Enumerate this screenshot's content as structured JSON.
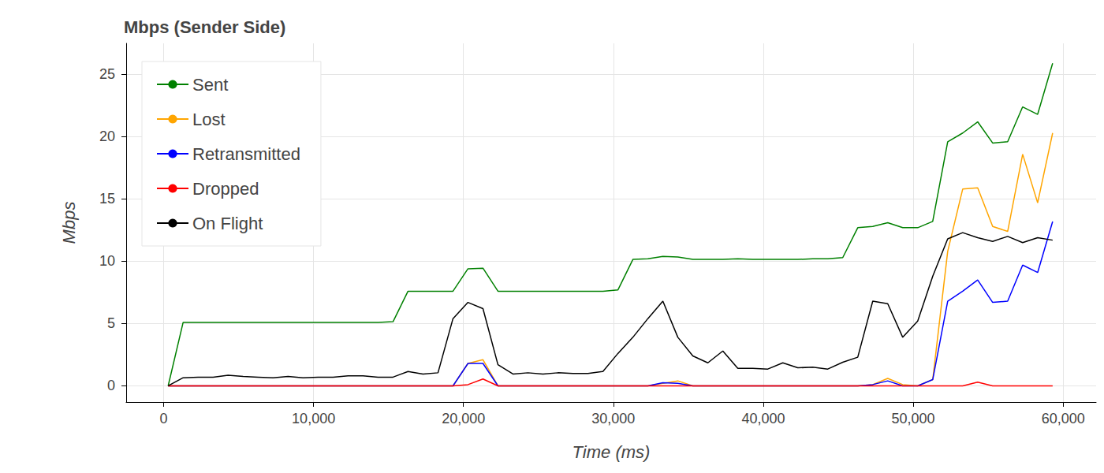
{
  "chart_data": {
    "type": "line",
    "title": "Mbps (Sender Side)",
    "x_label": "Time (ms)",
    "y_label": "Mbps",
    "x": [
      300,
      1300,
      2300,
      3300,
      4300,
      5300,
      6300,
      7300,
      8300,
      9300,
      10300,
      11300,
      12300,
      13300,
      14300,
      15300,
      16300,
      17300,
      18300,
      19300,
      20300,
      21300,
      22300,
      23300,
      24300,
      25300,
      26300,
      27300,
      28300,
      29300,
      30300,
      31300,
      32300,
      33300,
      34300,
      35300,
      36300,
      37300,
      38300,
      39300,
      40300,
      41300,
      42300,
      43300,
      44300,
      45300,
      46300,
      47300,
      48300,
      49300,
      50300,
      51300,
      52300,
      53300,
      54300,
      55300,
      56300,
      57300,
      58300,
      59300
    ],
    "series": [
      {
        "name": "Sent",
        "color": "#008000",
        "values": [
          0,
          5.1,
          5.1,
          5.1,
          5.1,
          5.1,
          5.1,
          5.1,
          5.1,
          5.1,
          5.1,
          5.1,
          5.1,
          5.1,
          5.1,
          5.15,
          7.6,
          7.6,
          7.6,
          7.6,
          9.4,
          9.45,
          7.6,
          7.6,
          7.6,
          7.6,
          7.6,
          7.6,
          7.6,
          7.6,
          7.7,
          10.15,
          10.2,
          10.4,
          10.35,
          10.15,
          10.15,
          10.15,
          10.2,
          10.15,
          10.15,
          10.15,
          10.15,
          10.2,
          10.2,
          10.3,
          12.7,
          12.8,
          13.1,
          12.7,
          12.7,
          13.2,
          19.6,
          20.3,
          21.2,
          19.5,
          19.6,
          22.4,
          21.8,
          25.9
        ]
      },
      {
        "name": "Lost",
        "color": "#ffa500",
        "values": [
          0,
          0,
          0,
          0,
          0,
          0,
          0,
          0,
          0,
          0,
          0,
          0,
          0,
          0,
          0,
          0,
          0,
          0,
          0,
          0,
          1.8,
          2.1,
          0,
          0,
          0,
          0,
          0,
          0,
          0,
          0,
          0,
          0,
          0,
          0.2,
          0.4,
          0,
          0,
          0,
          0,
          0,
          0,
          0,
          0,
          0,
          0,
          0,
          0,
          0.1,
          0.6,
          0.1,
          0,
          0.5,
          10.8,
          15.8,
          15.9,
          12.8,
          12.4,
          18.6,
          14.7,
          20.3
        ]
      },
      {
        "name": "Retransmitted",
        "color": "#0000ff",
        "values": [
          0,
          0,
          0,
          0,
          0,
          0,
          0,
          0,
          0,
          0,
          0,
          0,
          0,
          0,
          0,
          0,
          0,
          0,
          0,
          0,
          1.8,
          1.8,
          0,
          0,
          0,
          0,
          0,
          0,
          0,
          0,
          0,
          0,
          0,
          0.25,
          0.2,
          0,
          0,
          0,
          0,
          0,
          0,
          0,
          0,
          0,
          0,
          0,
          0,
          0.1,
          0.4,
          0,
          0,
          0.5,
          6.8,
          7.6,
          8.5,
          6.7,
          6.8,
          9.7,
          9.1,
          13.2
        ]
      },
      {
        "name": "Dropped",
        "color": "#ff0000",
        "values": [
          0,
          0,
          0,
          0,
          0,
          0,
          0,
          0,
          0,
          0,
          0,
          0,
          0,
          0,
          0,
          0,
          0,
          0,
          0,
          0,
          0.1,
          0.55,
          0,
          0,
          0,
          0,
          0,
          0,
          0,
          0,
          0,
          0,
          0,
          0,
          0,
          0,
          0,
          0,
          0,
          0,
          0,
          0,
          0,
          0,
          0,
          0,
          0,
          0,
          0,
          0,
          0,
          0,
          0,
          0,
          0.3,
          0,
          0,
          0,
          0,
          0
        ]
      },
      {
        "name": "On Flight",
        "color": "#000000",
        "values": [
          0,
          0.65,
          0.7,
          0.7,
          0.85,
          0.75,
          0.7,
          0.65,
          0.75,
          0.65,
          0.7,
          0.7,
          0.8,
          0.8,
          0.7,
          0.7,
          1.15,
          0.95,
          1.05,
          5.4,
          6.7,
          6.2,
          1.7,
          0.95,
          1.05,
          0.95,
          1.05,
          1.0,
          1.0,
          1.15,
          2.6,
          3.9,
          5.4,
          6.8,
          3.9,
          2.4,
          1.85,
          2.8,
          1.4,
          1.4,
          1.35,
          1.85,
          1.45,
          1.5,
          1.35,
          1.9,
          2.3,
          6.8,
          6.6,
          3.9,
          5.2,
          8.8,
          11.8,
          12.3,
          11.9,
          11.6,
          12.0,
          11.5,
          11.9,
          11.7
        ]
      }
    ],
    "xlim": [
      -2500,
      62200
    ],
    "xticks": [
      0,
      {
        "value": 10000,
        "label": "10,000"
      },
      {
        "value": 20000,
        "label": "20,000"
      },
      {
        "value": 30000,
        "label": "30,000"
      },
      {
        "value": 40000,
        "label": "40,000"
      },
      {
        "value": 50000,
        "label": "50,000"
      },
      {
        "value": 60000,
        "label": "60,000"
      }
    ],
    "ylim": [
      -1.3,
      27.5
    ],
    "yticks": [
      0,
      5,
      10,
      15,
      20,
      25
    ],
    "grid": true,
    "legend": "top-left"
  }
}
